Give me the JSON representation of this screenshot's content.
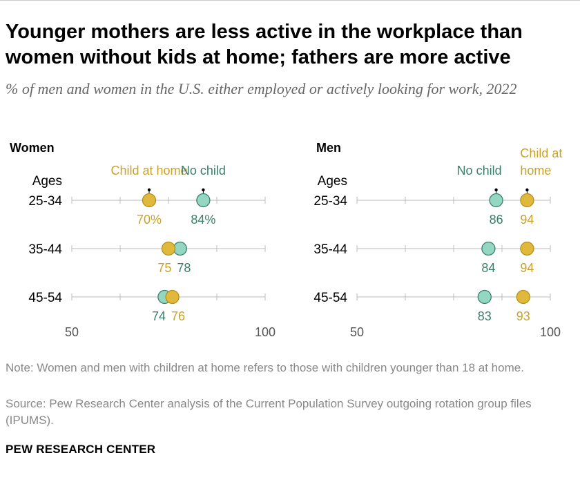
{
  "title": "Younger mothers are less active in the workplace than women without kids at home; fathers are more active",
  "subtitle": "% of men and women in the U.S. either employed or actively looking for work, 2022",
  "note": "Note: Women and men with children at home refers to those with children younger than 18 at home.",
  "source": "Source: Pew Research Center analysis of the Current Population Survey outgoing rotation group files (IPUMS).",
  "brand": "PEW RESEARCH CENTER",
  "colors": {
    "child_at_home": "#e0b93c",
    "no_child": "#93d6c1",
    "child_text": "#c9a227",
    "no_child_text": "#3b7d6b"
  },
  "chart_data": [
    {
      "type": "dot",
      "title": "Women",
      "row_header": "Ages",
      "categories": [
        "25-34",
        "35-44",
        "45-54"
      ],
      "xlim": [
        50,
        100
      ],
      "tick_labels": [
        "50",
        "100"
      ],
      "series": [
        {
          "name": "Child at home",
          "values": [
            70,
            75,
            76
          ],
          "labels": [
            "70%",
            "75",
            "76"
          ]
        },
        {
          "name": "No child",
          "values": [
            84,
            78,
            74
          ],
          "labels": [
            "84%",
            "78",
            "74"
          ]
        }
      ]
    },
    {
      "type": "dot",
      "title": "Men",
      "row_header": "Ages",
      "categories": [
        "25-34",
        "35-44",
        "45-54"
      ],
      "xlim": [
        50,
        100
      ],
      "tick_labels": [
        "50",
        "100"
      ],
      "series": [
        {
          "name": "Child at home",
          "values": [
            94,
            94,
            93
          ],
          "labels": [
            "94",
            "94",
            "93"
          ]
        },
        {
          "name": "No child",
          "values": [
            86,
            84,
            83
          ],
          "labels": [
            "86",
            "84",
            "83"
          ]
        }
      ]
    }
  ]
}
